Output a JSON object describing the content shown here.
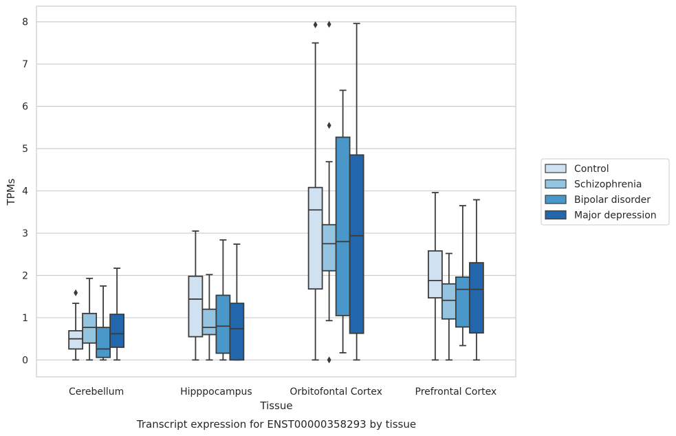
{
  "chart_data": {
    "type": "boxplot",
    "caption": "Transcript expression for ENST00000358293 by tissue",
    "xlabel": "Tissue",
    "ylabel": "TPMs",
    "ylim": [
      -0.4,
      8.37
    ],
    "yticks": [
      0,
      1,
      2,
      3,
      4,
      5,
      6,
      7,
      8
    ],
    "grid": "horizontal",
    "legend_position": "right",
    "categories": [
      "Cerebellum",
      "Hipppocampus",
      "Orbitofontal Cortex",
      "Prefrontal Cortex"
    ],
    "series": [
      {
        "name": "Control",
        "color": "#d0e1f2",
        "boxes": [
          {
            "whisker_low": 0.0,
            "q1": 0.26,
            "median": 0.5,
            "q3": 0.69,
            "whisker_high": 1.34,
            "outliers": [
              1.59
            ]
          },
          {
            "whisker_low": 0.0,
            "q1": 0.55,
            "median": 1.44,
            "q3": 1.98,
            "whisker_high": 3.05,
            "outliers": []
          },
          {
            "whisker_low": 0.0,
            "q1": 1.68,
            "median": 3.55,
            "q3": 4.08,
            "whisker_high": 7.5,
            "outliers": [
              7.93
            ]
          },
          {
            "whisker_low": 0.0,
            "q1": 1.47,
            "median": 1.88,
            "q3": 2.58,
            "whisker_high": 3.96,
            "outliers": []
          }
        ]
      },
      {
        "name": "Schizophrenia",
        "color": "#94c4df",
        "boxes": [
          {
            "whisker_low": 0.0,
            "q1": 0.4,
            "median": 0.77,
            "q3": 1.1,
            "whisker_high": 1.93,
            "outliers": []
          },
          {
            "whisker_low": 0.0,
            "q1": 0.6,
            "median": 0.77,
            "q3": 1.2,
            "whisker_high": 2.02,
            "outliers": []
          },
          {
            "whisker_low": 0.93,
            "q1": 2.11,
            "median": 2.75,
            "q3": 3.2,
            "whisker_high": 4.69,
            "outliers": [
              7.94,
              5.55,
              0.0
            ]
          },
          {
            "whisker_low": 0.0,
            "q1": 0.97,
            "median": 1.41,
            "q3": 1.8,
            "whisker_high": 2.52,
            "outliers": []
          }
        ]
      },
      {
        "name": "Bipolar disorder",
        "color": "#4a98c9",
        "boxes": [
          {
            "whisker_low": 0.0,
            "q1": 0.06,
            "median": 0.26,
            "q3": 0.77,
            "whisker_high": 1.75,
            "outliers": []
          },
          {
            "whisker_low": 0.0,
            "q1": 0.16,
            "median": 0.8,
            "q3": 1.53,
            "whisker_high": 2.84,
            "outliers": []
          },
          {
            "whisker_low": 0.17,
            "q1": 1.05,
            "median": 2.8,
            "q3": 5.27,
            "whisker_high": 6.38,
            "outliers": []
          },
          {
            "whisker_low": 0.34,
            "q1": 0.78,
            "median": 1.67,
            "q3": 1.96,
            "whisker_high": 3.65,
            "outliers": []
          }
        ]
      },
      {
        "name": "Major depression",
        "color": "#2266ac",
        "boxes": [
          {
            "whisker_low": 0.0,
            "q1": 0.3,
            "median": 0.62,
            "q3": 1.08,
            "whisker_high": 2.17,
            "outliers": []
          },
          {
            "whisker_low": 0.0,
            "q1": 0.0,
            "median": 0.74,
            "q3": 1.34,
            "whisker_high": 2.74,
            "outliers": []
          },
          {
            "whisker_low": 0.0,
            "q1": 0.63,
            "median": 2.94,
            "q3": 4.85,
            "whisker_high": 7.96,
            "outliers": []
          },
          {
            "whisker_low": 0.0,
            "q1": 0.64,
            "median": 1.67,
            "q3": 2.3,
            "whisker_high": 3.79,
            "outliers": []
          }
        ]
      }
    ]
  }
}
